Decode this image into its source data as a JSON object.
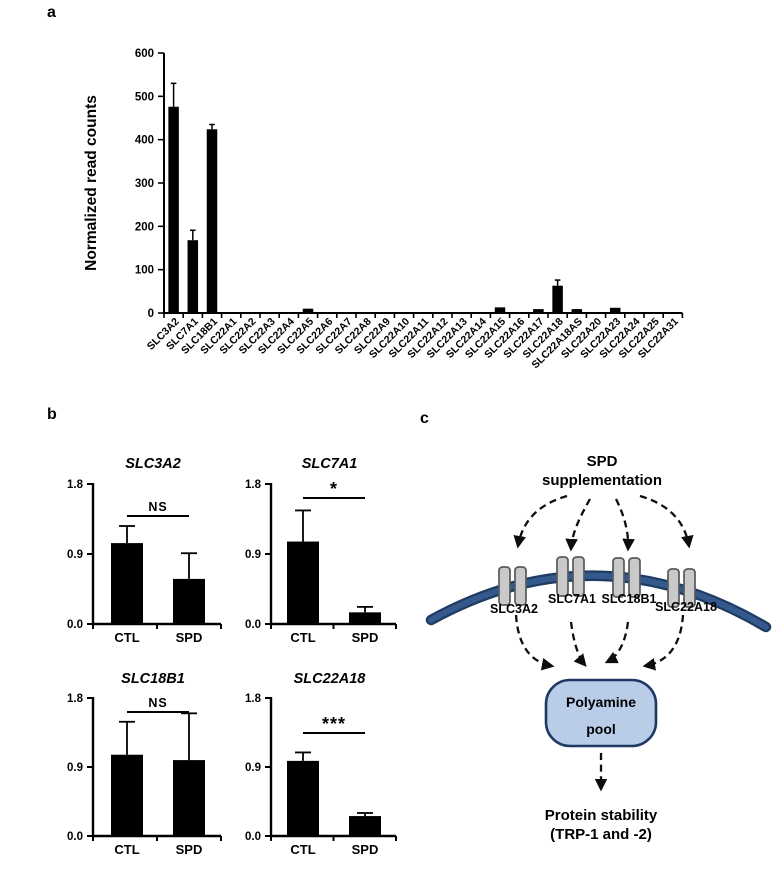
{
  "figure": {
    "panel_a_label": "a",
    "panel_b_label": "b",
    "panel_c_label": "c"
  },
  "chart_data": [
    {
      "id": "panel-a-expression",
      "type": "bar",
      "title": "",
      "xlabel": "",
      "ylabel": "Normalized read counts",
      "ylim": [
        0,
        600
      ],
      "yticks": [
        "0",
        "100",
        "200",
        "300",
        "400",
        "500",
        "600"
      ],
      "grid": false,
      "bar_color": "#000000",
      "categories": [
        "SLC3A2",
        "SLC7A1",
        "SLC18B1",
        "SLC22A1",
        "SLC22A2",
        "SLC22A3",
        "SLC22A4",
        "SLC22A5",
        "SLC22A6",
        "SLC22A7",
        "SLC22A8",
        "SLC22A9",
        "SLC22A10",
        "SLC22A11",
        "SLC22A12",
        "SLC22A13",
        "SLC22A14",
        "SLC22A15",
        "SLC22A16",
        "SLC22A17",
        "SLC22A18",
        "SLC22A18AS",
        "SLC22A20",
        "SLC22A23",
        "SLC22A24",
        "SLC22A25",
        "SLC22A31"
      ],
      "values": [
        476,
        168,
        424,
        0,
        0,
        0,
        0,
        10,
        0,
        0,
        0,
        0,
        0,
        0,
        0,
        0,
        0,
        13,
        0,
        9,
        63,
        9,
        0,
        12,
        0,
        0,
        0
      ],
      "errors": [
        54,
        23,
        11,
        0,
        0,
        0,
        0,
        0,
        0,
        0,
        0,
        0,
        0,
        0,
        0,
        0,
        0,
        0,
        0,
        0,
        13,
        0,
        0,
        0,
        0,
        0,
        0
      ]
    },
    {
      "id": "panel-b-slc3a2",
      "type": "bar",
      "title": "SLC3A2",
      "ylim": [
        0,
        1.8
      ],
      "yticks": [
        "0.0",
        "0.9",
        "1.8"
      ],
      "categories": [
        "CTL",
        "SPD"
      ],
      "values": [
        1.04,
        0.58
      ],
      "errors": [
        0.22,
        0.33
      ],
      "significance": "NS",
      "bar_color": "#000000"
    },
    {
      "id": "panel-b-slc7a1",
      "type": "bar",
      "title": "SLC7A1",
      "ylim": [
        0,
        1.8
      ],
      "yticks": [
        "0.0",
        "0.9",
        "1.8"
      ],
      "categories": [
        "CTL",
        "SPD"
      ],
      "values": [
        1.06,
        0.15
      ],
      "errors": [
        0.4,
        0.07
      ],
      "significance": "*",
      "bar_color": "#000000"
    },
    {
      "id": "panel-b-slc18b1",
      "type": "bar",
      "title": "SLC18B1",
      "ylim": [
        0,
        1.8
      ],
      "yticks": [
        "0.0",
        "0.9",
        "1.8"
      ],
      "categories": [
        "CTL",
        "SPD"
      ],
      "values": [
        1.06,
        0.99
      ],
      "errors": [
        0.43,
        0.61
      ],
      "significance": "NS",
      "bar_color": "#000000"
    },
    {
      "id": "panel-b-slc22a18",
      "type": "bar",
      "title": "SLC22A18",
      "ylim": [
        0,
        1.8
      ],
      "yticks": [
        "0.0",
        "0.9",
        "1.8"
      ],
      "categories": [
        "CTL",
        "SPD"
      ],
      "values": [
        0.98,
        0.26
      ],
      "errors": [
        0.11,
        0.04
      ],
      "significance": "***",
      "bar_color": "#000000"
    }
  ],
  "panel_c": {
    "spd_line1": "SPD",
    "spd_line2": "supplementation",
    "transporters": [
      "SLC3A2",
      "SLC7A1",
      "SLC18B1",
      "SLC22A18"
    ],
    "pool_line1": "Polyamine",
    "pool_line2": "pool",
    "output_line1": "Protein stability",
    "output_line2": "(TRP-1 and -2)",
    "colors": {
      "membrane_dark": "#1e3c62",
      "membrane_mid": "#35598c",
      "transporter_fill": "#c9c9c9",
      "transporter_border": "#58595b",
      "pool_fill": "#b9cce8",
      "pool_border": "#1f3864",
      "arrow": "#0d0d0d"
    }
  }
}
